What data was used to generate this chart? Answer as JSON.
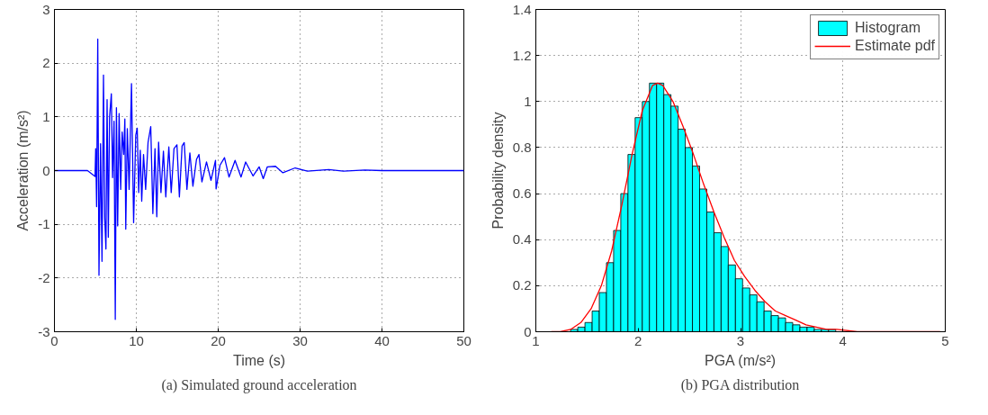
{
  "chart_data": [
    {
      "type": "line",
      "xlabel": "Time (s)",
      "ylabel": "Acceleration (m/s²)",
      "annotations": [
        "(a) Simulated ground acceleration"
      ],
      "xlim": [
        0,
        50
      ],
      "ylim": [
        -3,
        3
      ],
      "xticks": [
        0,
        10,
        20,
        30,
        40,
        50
      ],
      "yticks": [
        -3,
        -2,
        -1,
        0,
        1,
        2,
        3
      ],
      "grid": true,
      "legend": false,
      "series": [
        {
          "color": "#0000ff",
          "x": [
            0,
            4.04,
            4.96,
            5.04,
            5.15,
            5.29,
            5.44,
            5.63,
            5.81,
            5.99,
            6.14,
            6.29,
            6.43,
            6.58,
            6.73,
            6.95,
            7.1,
            7.28,
            7.43,
            7.57,
            7.72,
            7.9,
            8.09,
            8.27,
            8.46,
            8.6,
            8.71,
            8.9,
            9.12,
            9.41,
            9.67,
            9.93,
            10.11,
            10.29,
            10.48,
            10.66,
            10.88,
            11.14,
            11.43,
            11.76,
            12.02,
            12.28,
            12.5,
            12.72,
            13.01,
            13.31,
            13.6,
            13.97,
            14.26,
            14.6,
            14.96,
            15.26,
            15.59,
            15.85,
            16.18,
            16.54,
            16.91,
            17.35,
            17.65,
            18.01,
            18.57,
            19.12,
            19.67,
            19.74,
            20.22,
            20.77,
            21.32,
            22.06,
            22.79,
            23.35,
            24.26,
            25.0,
            25.5,
            26.0,
            27.0,
            27.9,
            29.4,
            30.9,
            33.5,
            35.3,
            37.9,
            40,
            50
          ],
          "values": [
            0,
            0,
            -0.11,
            0.41,
            -0.67,
            2.45,
            -1.95,
            0.5,
            -1.69,
            1.78,
            -0.88,
            -1.46,
            1.32,
            -1.24,
            1.0,
            1.43,
            -0.13,
            0.92,
            -2.77,
            1.17,
            -1.03,
            1.06,
            -0.35,
            0.72,
            0.3,
            0.96,
            -1.09,
            0.78,
            -0.35,
            1.62,
            -0.97,
            0.66,
            0.79,
            -0.41,
            0.38,
            -0.57,
            0.3,
            -0.35,
            0.52,
            0.82,
            -0.8,
            0.41,
            -0.86,
            0.53,
            -0.41,
            0.36,
            -0.49,
            0.44,
            -0.41,
            0.41,
            0.48,
            -0.49,
            0.46,
            0.52,
            -0.35,
            0.33,
            -0.29,
            0.21,
            0.3,
            -0.21,
            0.16,
            -0.18,
            0.19,
            -0.34,
            0.1,
            0.24,
            -0.12,
            0.19,
            -0.12,
            0.16,
            -0.1,
            0.07,
            -0.15,
            0.07,
            0.08,
            -0.04,
            0.05,
            -0.01,
            0.02,
            -0.01,
            0.01,
            0,
            0
          ]
        }
      ]
    },
    {
      "type": "histogram",
      "xlabel": "PGA (m/s²)",
      "ylabel": "Probability density",
      "annotations": [
        "(b) PGA distribution"
      ],
      "xlim": [
        1,
        5
      ],
      "ylim": [
        0,
        1.4
      ],
      "xticks": [
        1,
        2,
        3,
        4,
        5
      ],
      "yticks": [
        0,
        0.2,
        0.4,
        0.6,
        0.8,
        1,
        1.2,
        1.4
      ],
      "grid": true,
      "legend": "top right",
      "series": [
        {
          "name": "Histogram",
          "color": "#00ffff",
          "bins": [
            1.34,
            1.41,
            1.48,
            1.55,
            1.62,
            1.69,
            1.76,
            1.83,
            1.9,
            1.97,
            2.04,
            2.11,
            2.18,
            2.25,
            2.32,
            2.39,
            2.46,
            2.53,
            2.6,
            2.67,
            2.74,
            2.81,
            2.88,
            2.95,
            3.02,
            3.09,
            3.16,
            3.23,
            3.3,
            3.37,
            3.44,
            3.51,
            3.58,
            3.65,
            3.72,
            3.79,
            3.86,
            3.93
          ],
          "values": [
            0.01,
            0.02,
            0.04,
            0.09,
            0.17,
            0.3,
            0.44,
            0.6,
            0.77,
            0.93,
            1.0,
            1.08,
            1.08,
            1.03,
            0.98,
            0.88,
            0.8,
            0.72,
            0.62,
            0.52,
            0.43,
            0.37,
            0.29,
            0.23,
            0.19,
            0.16,
            0.13,
            0.09,
            0.07,
            0.06,
            0.04,
            0.03,
            0.02,
            0.02,
            0.01,
            0.01,
            0.01
          ]
        },
        {
          "type": "line",
          "name": "Estimate pdf",
          "color": "#ff0000",
          "x": [
            1.15,
            1.24,
            1.34,
            1.44,
            1.54,
            1.64,
            1.74,
            1.84,
            1.94,
            2.04,
            2.14,
            2.19,
            2.24,
            2.34,
            2.44,
            2.54,
            2.64,
            2.74,
            2.84,
            2.94,
            3.04,
            3.14,
            3.24,
            3.34,
            3.44,
            3.54,
            3.64,
            3.74,
            3.84,
            3.94,
            4.14,
            4.44,
            4.95
          ],
          "values": [
            0,
            0,
            0.01,
            0.04,
            0.1,
            0.2,
            0.35,
            0.55,
            0.77,
            0.96,
            1.07,
            1.08,
            1.07,
            1.0,
            0.89,
            0.77,
            0.64,
            0.52,
            0.41,
            0.31,
            0.24,
            0.18,
            0.13,
            0.09,
            0.07,
            0.05,
            0.03,
            0.02,
            0.01,
            0.01,
            0,
            0,
            0
          ]
        }
      ]
    }
  ]
}
